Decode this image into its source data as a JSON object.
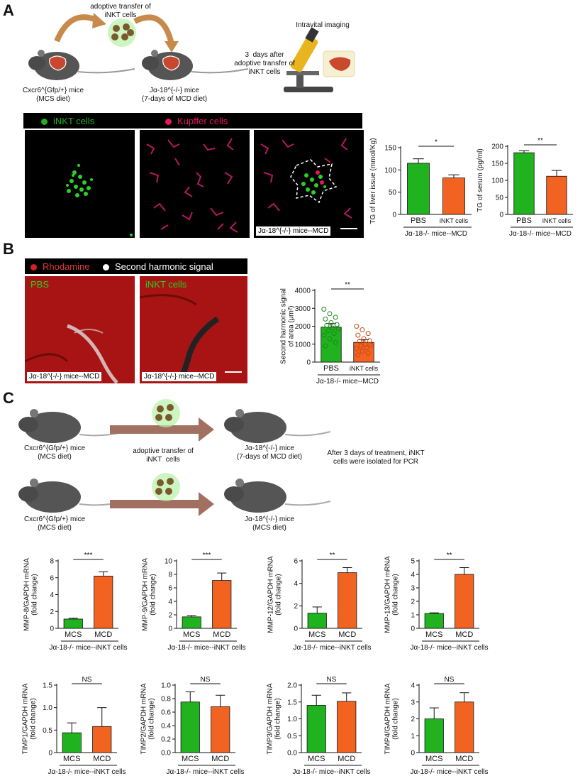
{
  "panels": {
    "A": "A",
    "B": "B",
    "C": "C"
  },
  "colors": {
    "green": "#21b21f",
    "orange": "#f26322",
    "kupffer": "#e2185a",
    "rhodamine": "#d42020"
  },
  "panelA": {
    "transfer_label": "adoptive transfer of\niNKT cells",
    "donor_label": "Cxcr6^{Gfp/+} mice\n(MCS diet)",
    "recipient_label": "Jα-18^{-/-} mice\n(7-days of MCD diet)",
    "after_label": "3  days after\nadoptive transfer of\niNKT cells",
    "imaging_label": "Intravital imaging",
    "legend_inkt": "iNKT cells",
    "legend_kupffer": "Kupffer cells",
    "image_tag": "Jα-18^{-/-} mice--MCD"
  },
  "panelB": {
    "legend_rhodamine": "Rhodamine",
    "legend_shg": "Second harmonic signal",
    "img1_label": "PBS",
    "img2_label": "iNKT cells",
    "img1_tag": "Jα-18^{-/-} mice--MCD",
    "img2_tag": "Jα-18^{-/-} mice--MCD"
  },
  "panelC": {
    "donor1_label": "Cxcr6^{Gfp/+} mice\n(MCS diet)",
    "recipient1_label": "Jα-18^{-/-} mice\n(7-days of MCD diet)",
    "transfer_label": "adoptive transfer of\niNKT  cells",
    "note": "After 3 days of treatment, iNKT\ncells were isolated for PCR",
    "donor2_label": "Cxcr6^{Gfp/+} mice\n(MCS diet)",
    "recipient2_label": "Jα-18^{-/-} mice\n(MCS diet)"
  },
  "chart_data": [
    {
      "id": "A-liver",
      "type": "bar",
      "categories": [
        "PBS",
        "iNKT cells"
      ],
      "values": [
        115,
        82
      ],
      "errors": [
        10,
        7
      ],
      "ylabel": "TG of liver issue (mmol/Kg)",
      "yticks": [
        0,
        50,
        100,
        150
      ],
      "ylim": [
        0,
        150
      ],
      "sig": "*",
      "xgroup": "Jα-18^{-/-} mice--MCD"
    },
    {
      "id": "A-serum",
      "type": "bar",
      "categories": [
        "PBS",
        "iNKT cells"
      ],
      "values": [
        181,
        112
      ],
      "errors": [
        6,
        17
      ],
      "ylabel": "TG of serum (pg/ml)",
      "yticks": [
        0,
        50,
        100,
        150,
        200
      ],
      "ylim": [
        0,
        200
      ],
      "sig": "**",
      "xgroup": "Jα-18^{-/-} mice--MCD"
    },
    {
      "id": "B-shg",
      "type": "bar",
      "categories": [
        "PBS",
        "iNKT cells"
      ],
      "values": [
        1950,
        1100
      ],
      "errors": [
        200,
        150
      ],
      "ylabel": "Second harmonic signal\nof area (μm²)",
      "yticks": [
        0,
        1000,
        2000,
        3000,
        4000
      ],
      "ylim": [
        0,
        4000
      ],
      "sig": "**",
      "xgroup": "Jα-18^{-/-} mice--MCD",
      "points": [
        [
          2950,
          2700,
          2500,
          2400,
          2200,
          2100,
          2050,
          1900,
          1850,
          1750,
          1600,
          1500,
          1300,
          1100,
          900
        ],
        [
          2000,
          1800,
          1600,
          1500,
          1300,
          1200,
          1150,
          1000,
          950,
          900,
          800,
          750,
          600,
          500,
          400
        ]
      ]
    },
    {
      "id": "MMP-8",
      "type": "bar",
      "categories": [
        "MCS",
        "MCD"
      ],
      "values": [
        1.1,
        6.2
      ],
      "errors": [
        0.1,
        0.5
      ],
      "ylabel": "MMP-8/GAPDH mRNA\n(fold change)",
      "yticks": [
        0,
        2,
        4,
        6,
        8
      ],
      "ylim": [
        0,
        8
      ],
      "sig": "***",
      "xgroup": "Jα-18^{-/-} mice--iNKT cells"
    },
    {
      "id": "MMP-9",
      "type": "bar",
      "categories": [
        "MCS",
        "MCD"
      ],
      "values": [
        1.7,
        7.1
      ],
      "errors": [
        0.2,
        1.1
      ],
      "ylabel": "MMP-9/GAPDH mRNA\n(fold change)",
      "yticks": [
        0,
        2,
        4,
        6,
        8,
        10
      ],
      "ylim": [
        0,
        10
      ],
      "sig": "***",
      "xgroup": "Jα-18^{-/-} mice--iNKT cells"
    },
    {
      "id": "MMP-12",
      "type": "bar",
      "categories": [
        "MCS",
        "MCD"
      ],
      "values": [
        1.35,
        4.95
      ],
      "errors": [
        0.55,
        0.45
      ],
      "ylabel": "MMP-12/GAPDH mRNA\n(fold change)",
      "yticks": [
        0,
        2,
        4,
        6
      ],
      "ylim": [
        0,
        6
      ],
      "sig": "**",
      "xgroup": "Jα-18^{-/-} mice--iNKT cells"
    },
    {
      "id": "MMP-13",
      "type": "bar",
      "categories": [
        "MCS",
        "MCD"
      ],
      "values": [
        1.1,
        4.0
      ],
      "errors": [
        0.05,
        0.5
      ],
      "ylabel": "MMP-13/GAPDH mRNA\n(fold change)",
      "yticks": [
        0,
        1,
        2,
        3,
        4,
        5
      ],
      "ylim": [
        0,
        5
      ],
      "sig": "**",
      "xgroup": "Jα-18^{-/-} mice--iNKT cells"
    },
    {
      "id": "TIMP1",
      "type": "bar",
      "categories": [
        "MCS",
        "MCD"
      ],
      "values": [
        0.44,
        0.58
      ],
      "errors": [
        0.22,
        0.42
      ],
      "ylabel": "TIMP1/GAPDH mRNA\n(fold change)",
      "yticks": [
        0,
        0.5,
        1.0,
        1.5
      ],
      "yticklabels": [
        "0",
        "0.5",
        "1.0",
        "1.5"
      ],
      "ylim": [
        0,
        1.5
      ],
      "sig": "NS",
      "xgroup": "Jα-18^{-/-} mice--iNKT cells"
    },
    {
      "id": "TIMP2",
      "type": "bar",
      "categories": [
        "MCS",
        "MCD"
      ],
      "values": [
        0.75,
        0.68
      ],
      "errors": [
        0.15,
        0.17
      ],
      "ylabel": "TIMP2/GAPDH mRNA\n(fold change)",
      "yticks": [
        0,
        0.2,
        0.4,
        0.6,
        0.8,
        1.0
      ],
      "yticklabels": [
        "0.0",
        "0.2",
        "0.4",
        "0.6",
        "0.8",
        "1.0"
      ],
      "ylim": [
        0,
        1.0
      ],
      "sig": "NS",
      "xgroup": "Jα-18^{-/-} mice--iNKT cells"
    },
    {
      "id": "TIMP3",
      "type": "bar",
      "categories": [
        "MCS",
        "MCD"
      ],
      "values": [
        1.4,
        1.52
      ],
      "errors": [
        0.3,
        0.25
      ],
      "ylabel": "TIMP3/GAPDH mRNA\n(fold change)",
      "yticks": [
        0,
        0.5,
        1.0,
        1.5,
        2.0
      ],
      "yticklabels": [
        "0.0",
        "0.5",
        "1.0",
        "1.5",
        "2.0"
      ],
      "ylim": [
        0,
        2.0
      ],
      "sig": "NS",
      "xgroup": "Jα-18^{-/-} mice--iNKT cells"
    },
    {
      "id": "TIMP4",
      "type": "bar",
      "categories": [
        "MCS",
        "MCD"
      ],
      "values": [
        2.0,
        3.0
      ],
      "errors": [
        0.65,
        0.55
      ],
      "ylabel": "TIMP4/GAPDH mRNA\n(fold change)",
      "yticks": [
        0,
        1,
        2,
        3,
        4
      ],
      "ylim": [
        0,
        4
      ],
      "sig": "NS",
      "xgroup": "Jα-18^{-/-} mice--iNKT cells"
    }
  ]
}
